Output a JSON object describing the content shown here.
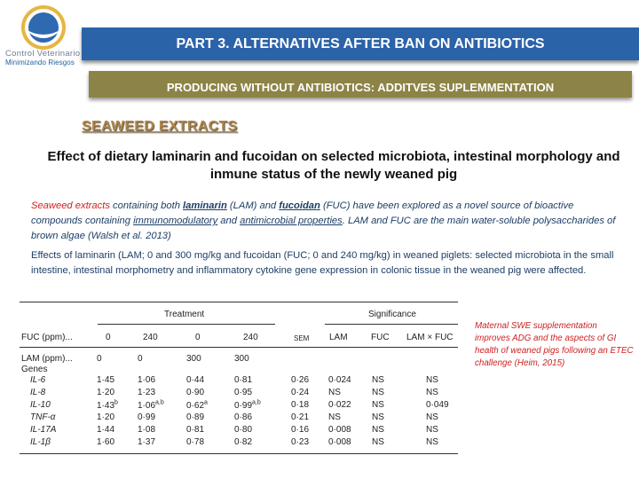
{
  "logo": {
    "line1": "Control Veterinario",
    "line2": "Minimizando Riesgos"
  },
  "header": {
    "part_title": "PART 3. ALTERNATIVES AFTER BAN ON ANTIBIOTICS",
    "subtitle": "PRODUCING WITHOUT ANTIBIOTICS: ADDITVES SUPLEMMENTATION",
    "section": "SEAWEED EXTRACTS"
  },
  "title": "Effect of dietary laminarin and fucoidan on selected microbiota, intestinal morphology and inmune status of the newly weaned pig",
  "para1": {
    "s1": "Seaweed extracts",
    "s2": " containing both ",
    "s3": "laminarin",
    "s4": " (LAM) and ",
    "s5": "fucoidan",
    "s6": " (FUC) have been explored as a novel source of bioactive compounds containing ",
    "s7": "immunomodulatory",
    "s8": " and ",
    "s9": "antimicrobial properties",
    "s10": ". LAM and FUC are the main water-soluble polysaccharides of brown algae (Walsh et al. 2013)"
  },
  "para2": "Effects of laminarin (LAM; 0 and 300 mg/kg and fucoidan (FUC; 0 and 240 mg/kg) in weaned piglets: selected microbiota in the small intestine, intestinal morphometry and inflammatory cytokine gene expression in colonic tissue in the weaned pig were affected.",
  "table": {
    "group_treatment": "Treatment",
    "group_significance": "Significance",
    "fuc_label": "FUC (ppm)...",
    "fuc_values": [
      "0",
      "240",
      "0",
      "240"
    ],
    "sem": "SEM",
    "sig_cols": [
      "LAM",
      "FUC",
      "LAM × FUC"
    ],
    "lam_label": "LAM (ppm)...",
    "lam_values": [
      "0",
      "0",
      "300",
      "300"
    ],
    "genes_label": "Genes",
    "rows": [
      {
        "gene": "IL-6",
        "v": [
          "1·45",
          "1·06",
          "0·44",
          "0·81"
        ],
        "sup": [
          "",
          "",
          "",
          ""
        ],
        "sem": "0·26",
        "sig": [
          "0·024",
          "NS",
          "NS"
        ]
      },
      {
        "gene": "IL-8",
        "v": [
          "1·20",
          "1·23",
          "0·90",
          "0·95"
        ],
        "sup": [
          "",
          "",
          "",
          ""
        ],
        "sem": "0·24",
        "sig": [
          "NS",
          "NS",
          "NS"
        ]
      },
      {
        "gene": "IL-10",
        "v": [
          "1·43",
          "1·06",
          "0·62",
          "0·99"
        ],
        "sup": [
          "b",
          "a,b",
          "a",
          "a,b"
        ],
        "sem": "0·18",
        "sig": [
          "0·022",
          "NS",
          "0·049"
        ]
      },
      {
        "gene": "TNF-α",
        "v": [
          "1·20",
          "0·99",
          "0·89",
          "0·86"
        ],
        "sup": [
          "",
          "",
          "",
          ""
        ],
        "sem": "0·21",
        "sig": [
          "NS",
          "NS",
          "NS"
        ]
      },
      {
        "gene": "IL-17A",
        "v": [
          "1·44",
          "1·08",
          "0·81",
          "0·80"
        ],
        "sup": [
          "",
          "",
          "",
          ""
        ],
        "sem": "0·16",
        "sig": [
          "0·008",
          "NS",
          "NS"
        ]
      },
      {
        "gene": "IL-1β",
        "v": [
          "1·60",
          "1·37",
          "0·78",
          "0·82"
        ],
        "sup": [
          "",
          "",
          "",
          ""
        ],
        "sem": "0·23",
        "sig": [
          "0·008",
          "NS",
          "NS"
        ]
      }
    ]
  },
  "note": "Maternal SWE supplementation improves ADG and the aspects of GI health of weaned pigs following an ETEC challenge (Heim, 2015)",
  "colors": {
    "header_blue": "#2b63a9",
    "header_olive": "#8c8346",
    "section_brown": "#b0864a",
    "text_blue": "#1c3e66",
    "accent_red": "#d02020"
  },
  "icons": {
    "logo": "logo-icon"
  }
}
